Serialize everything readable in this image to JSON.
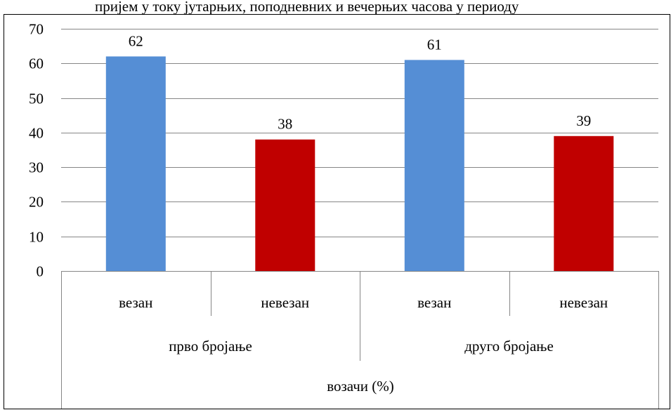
{
  "top_text": "пријем у току јутарњих, поподневних и вечерњих часова у периоду",
  "chart_data": {
    "type": "bar",
    "title": "",
    "xlabel": "возачи (%)",
    "ylabel": "",
    "ylim": [
      0,
      70
    ],
    "ytick_step": 10,
    "grid": true,
    "legend": "none",
    "groups": [
      {
        "label": "прво бројање",
        "categories": [
          "везан",
          "невезан"
        ],
        "values": [
          62,
          38
        ]
      },
      {
        "label": "друго бројање",
        "categories": [
          "везан",
          "невезан"
        ],
        "values": [
          61,
          39
        ]
      }
    ],
    "colors": {
      "везан": "#558ED5",
      "невезан": "#C00000"
    }
  }
}
